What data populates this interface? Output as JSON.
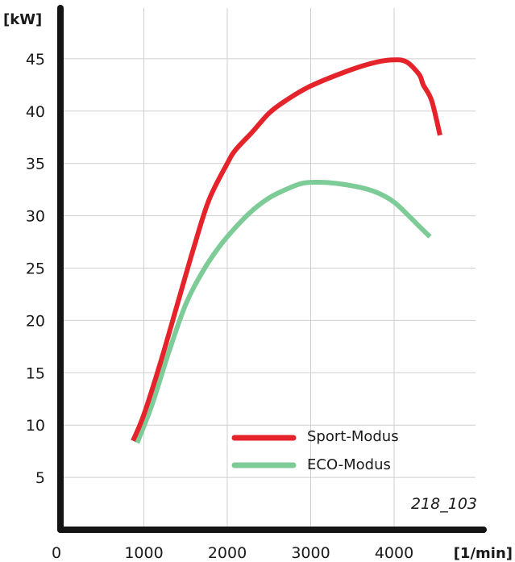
{
  "chart_data": {
    "type": "line",
    "ylabel": "[kW]",
    "xlabel": "[1/min]",
    "xlim": [
      0,
      4600
    ],
    "ylim": [
      0,
      49
    ],
    "x_ticks": [
      0,
      1000,
      2000,
      3000,
      4000
    ],
    "x_tick_labels": [
      "0",
      "1000",
      "2000",
      "3000",
      "4000"
    ],
    "y_ticks": [
      5,
      10,
      15,
      20,
      25,
      30,
      35,
      40,
      45
    ],
    "y_tick_labels": [
      "5",
      "10",
      "15",
      "20",
      "25",
      "30",
      "35",
      "40",
      "45"
    ],
    "grid": true,
    "legend_position": "lower-right",
    "figure_id": "218_103",
    "series": [
      {
        "name": "Sport-Modus",
        "color": "#e4232b",
        "x": [
          870,
          1000,
          1200,
          1400,
          1600,
          1780,
          2000,
          2100,
          2300,
          2500,
          2700,
          3000,
          3500,
          3800,
          4000,
          4150,
          4300,
          4350,
          4450,
          4550
        ],
        "y": [
          8.5,
          11.0,
          16.0,
          21.5,
          27.0,
          31.5,
          35.0,
          36.3,
          38.0,
          39.8,
          41.0,
          42.4,
          44.0,
          44.7,
          44.9,
          44.7,
          43.5,
          42.5,
          41.0,
          37.7
        ]
      },
      {
        "name": "ECO-Modus",
        "color": "#7dcb97",
        "x": [
          920,
          1100,
          1300,
          1500,
          1700,
          1900,
          2100,
          2300,
          2500,
          2700,
          2900,
          3100,
          3300,
          3600,
          3800,
          4000,
          4200,
          4300,
          4430
        ],
        "y": [
          8.3,
          12.0,
          17.0,
          21.5,
          24.6,
          27.0,
          28.9,
          30.5,
          31.7,
          32.5,
          33.1,
          33.2,
          33.1,
          32.7,
          32.2,
          31.3,
          29.8,
          29.0,
          28.0
        ]
      }
    ]
  }
}
